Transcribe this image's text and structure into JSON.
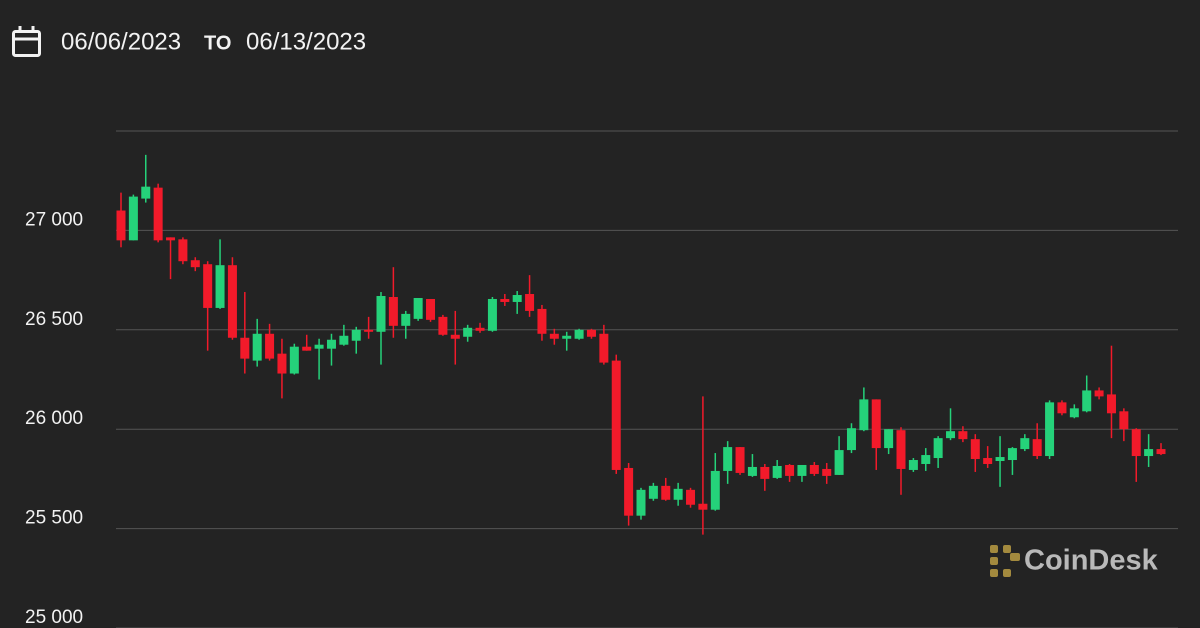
{
  "header": {
    "from": "06/06/2023",
    "separator": "TO",
    "to": "06/13/2023"
  },
  "logo": "CoinDesk",
  "chart_data": {
    "type": "candlestick",
    "up_color": "#25d27a",
    "down_color": "#f21a2a",
    "grid": true,
    "ylim": [
      25000,
      27500
    ],
    "yticks": [
      {
        "value": 25000,
        "label": "25 000"
      },
      {
        "value": 25500,
        "label": "25 500"
      },
      {
        "value": 26000,
        "label": "26 000"
      },
      {
        "value": 26500,
        "label": "26 500"
      },
      {
        "value": 27000,
        "label": "27 000"
      }
    ],
    "open": [
      27100,
      26950,
      27160,
      27215,
      26965,
      26955,
      26850,
      26830,
      26610,
      26825,
      26460,
      26345,
      26480,
      26380,
      26280,
      26415,
      26405,
      26405,
      26425,
      26445,
      26500,
      26490,
      26665,
      26520,
      26555,
      26655,
      26565,
      26475,
      26465,
      26510,
      26495,
      26655,
      26640,
      26680,
      26605,
      26480,
      26455,
      26455,
      26500,
      26480,
      26345,
      25805,
      25565,
      25650,
      25715,
      25645,
      25695,
      25625,
      25595,
      25790,
      25910,
      25765,
      25810,
      25755,
      25820,
      25765,
      25820,
      25800,
      25770,
      25895,
      25995,
      26150,
      25905,
      25995,
      25795,
      25825,
      25855,
      25955,
      25990,
      25950,
      25855,
      25840,
      25845,
      25900,
      25950,
      25865,
      26135,
      26060,
      26090,
      26195,
      26175,
      26090,
      26000,
      25865,
      25900
    ],
    "high": [
      27190,
      27180,
      27380,
      27235,
      26965,
      26965,
      26865,
      26845,
      26955,
      26865,
      26690,
      26555,
      26530,
      26455,
      26430,
      26475,
      26455,
      26480,
      26525,
      26515,
      26565,
      26690,
      26815,
      26595,
      26660,
      26655,
      26575,
      26595,
      26525,
      26535,
      26665,
      26680,
      26695,
      26775,
      26625,
      26505,
      26490,
      26505,
      26505,
      26525,
      26375,
      25830,
      25705,
      25730,
      25755,
      25730,
      25705,
      26165,
      25880,
      25940,
      25910,
      25875,
      25825,
      25845,
      25825,
      25820,
      25835,
      25830,
      25965,
      26030,
      26210,
      26150,
      26000,
      26010,
      25855,
      25905,
      25965,
      26105,
      26015,
      25975,
      25915,
      25965,
      25910,
      25975,
      26030,
      26145,
      26145,
      26125,
      26270,
      26210,
      26420,
      26105,
      26005,
      25975,
      25930
    ],
    "low": [
      26915,
      26950,
      27140,
      26940,
      26755,
      26830,
      26795,
      26395,
      26605,
      26450,
      26280,
      26315,
      26345,
      26155,
      26275,
      26395,
      26250,
      26320,
      26420,
      26380,
      26455,
      26325,
      26460,
      26455,
      26545,
      26540,
      26470,
      26325,
      26440,
      26485,
      26490,
      26620,
      26580,
      26565,
      26445,
      26425,
      26395,
      26450,
      26455,
      26325,
      25775,
      25515,
      25545,
      25640,
      25640,
      25615,
      25605,
      25470,
      25590,
      25725,
      25770,
      25760,
      25690,
      25750,
      25735,
      25735,
      25765,
      25725,
      25770,
      25880,
      25990,
      25795,
      25875,
      25670,
      25785,
      25790,
      25805,
      25945,
      25935,
      25785,
      25805,
      25710,
      25770,
      25890,
      25850,
      25850,
      26070,
      26055,
      26085,
      26150,
      25955,
      25940,
      25735,
      25810,
      25870
    ],
    "close": [
      26950,
      27170,
      27220,
      26950,
      26950,
      26845,
      26815,
      26610,
      26825,
      26460,
      26355,
      26480,
      26355,
      26280,
      26415,
      26395,
      26425,
      26450,
      26470,
      26500,
      26490,
      26670,
      26520,
      26580,
      26660,
      26550,
      26475,
      26455,
      26510,
      26495,
      26655,
      26640,
      26675,
      26595,
      26480,
      26455,
      26470,
      26500,
      26465,
      26335,
      25795,
      25565,
      25695,
      25715,
      25645,
      25700,
      25620,
      25595,
      25790,
      25910,
      25780,
      25810,
      25750,
      25815,
      25765,
      25820,
      25775,
      25765,
      25895,
      26005,
      26150,
      25905,
      26000,
      25800,
      25845,
      25870,
      25955,
      25990,
      25950,
      25850,
      25825,
      25860,
      25905,
      25955,
      25865,
      26135,
      26080,
      26105,
      26195,
      26165,
      26080,
      26000,
      25865,
      25900,
      25875
    ]
  }
}
